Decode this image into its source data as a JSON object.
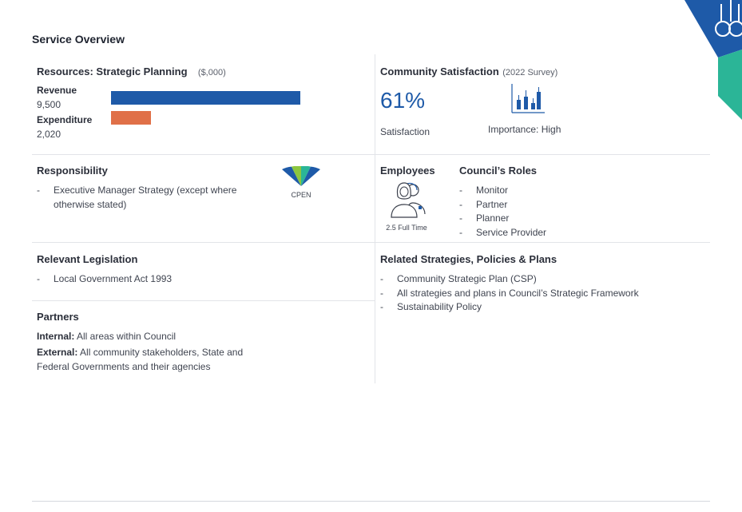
{
  "page_title": "Service Overview",
  "colors": {
    "revenue_bar": "#1e5aa8",
    "expenditure_bar": "#e07048",
    "accent_blue": "#1e5aa8",
    "accent_green": "#2bb597"
  },
  "resources": {
    "title": "Resources: Strategic Planning",
    "unit": "($,000)",
    "revenue_label": "Revenue",
    "revenue_value": "9,500",
    "revenue_amount": 9500,
    "expenditure_label": "Expenditure",
    "expenditure_value": "2,020",
    "expenditure_amount": 2020
  },
  "satisfaction": {
    "title": "Community Satisfaction",
    "survey": "(2022 Survey)",
    "percent": "61%",
    "label": "Satisfaction",
    "importance": "Importance: High",
    "importance_icon": "bar-chart-icon"
  },
  "responsibility": {
    "title": "Responsibility",
    "items": [
      "Executive Manager Strategy (except where otherwise stated)"
    ],
    "badge_icon": "cpen-segments-icon",
    "badge_label": "CPEN"
  },
  "employees": {
    "title": "Employees",
    "icon": "employees-icon",
    "label": "2.5 Full Time"
  },
  "roles": {
    "title": "Council’s Roles",
    "items": [
      "Monitor",
      "Partner",
      "Planner",
      "Service Provider"
    ]
  },
  "legislation": {
    "title": "Relevant Legislation",
    "items": [
      "Local Government Act 1993"
    ]
  },
  "related": {
    "title": "Related Strategies, Policies & Plans",
    "items": [
      "Community Strategic Plan (CSP)",
      "All strategies and plans in Council’s Strategic Framework",
      "Sustainability Policy"
    ]
  },
  "partners": {
    "title": "Partners",
    "internal_label": "Internal:",
    "internal_text": "All areas within Council",
    "external_label": "External:",
    "external_text": "All community stakeholders, State and Federal Governments and their agencies"
  }
}
